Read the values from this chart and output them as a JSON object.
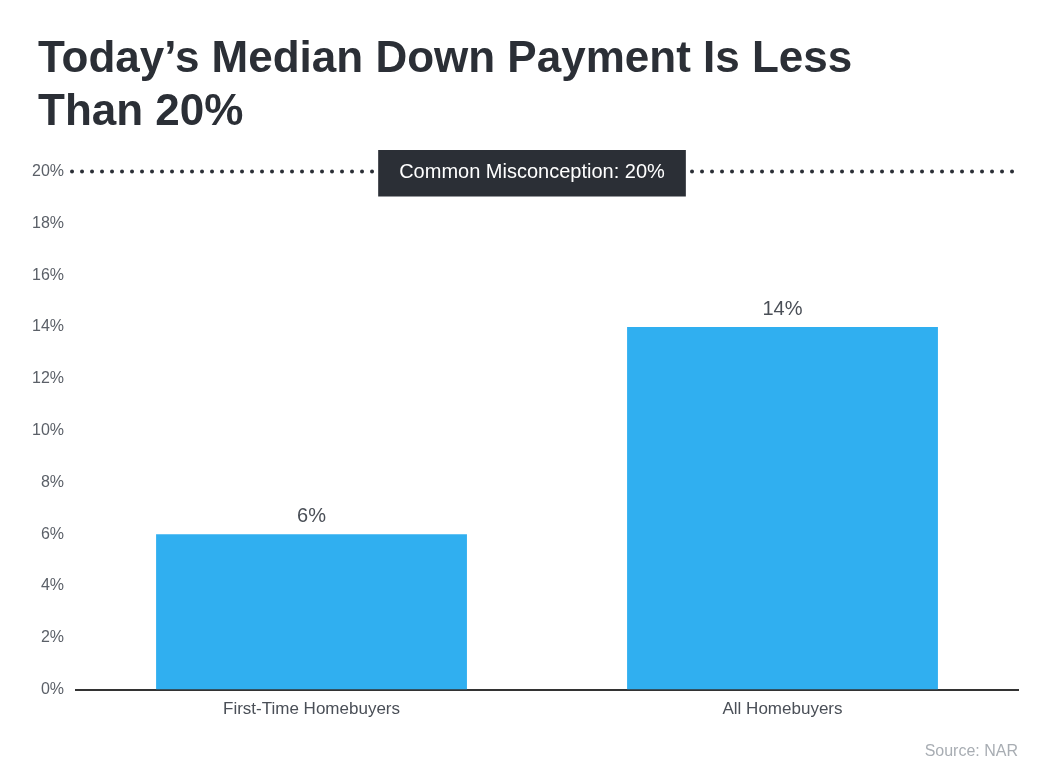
{
  "chart_data": {
    "type": "bar",
    "title": "Today’s Median Down Payment Is Less Than 20%",
    "categories": [
      "First-Time Homebuyers",
      "All Homebuyers"
    ],
    "values": [
      6,
      14
    ],
    "color": "#30aff0",
    "value_labels": [
      "6%",
      "14%"
    ],
    "ylim": [
      0,
      20
    ],
    "yticks": [
      {
        "value": 0,
        "label": "0%"
      },
      {
        "value": 2,
        "label": "2%"
      },
      {
        "value": 4,
        "label": "4%"
      },
      {
        "value": 6,
        "label": "6%"
      },
      {
        "value": 8,
        "label": "8%"
      },
      {
        "value": 10,
        "label": "10%"
      },
      {
        "value": 12,
        "label": "12%"
      },
      {
        "value": 14,
        "label": "14%"
      },
      {
        "value": 16,
        "label": "16%"
      },
      {
        "value": 18,
        "label": "18%"
      },
      {
        "value": 20,
        "label": "20%"
      }
    ],
    "grid": false,
    "legend": false,
    "ref_lines": [
      {
        "axis": "y",
        "value": 20,
        "label": "Common Misconception: 20%",
        "color": "#2b2f36",
        "line_style": "dotted"
      }
    ],
    "annotations": [
      "Source: NAR"
    ]
  }
}
